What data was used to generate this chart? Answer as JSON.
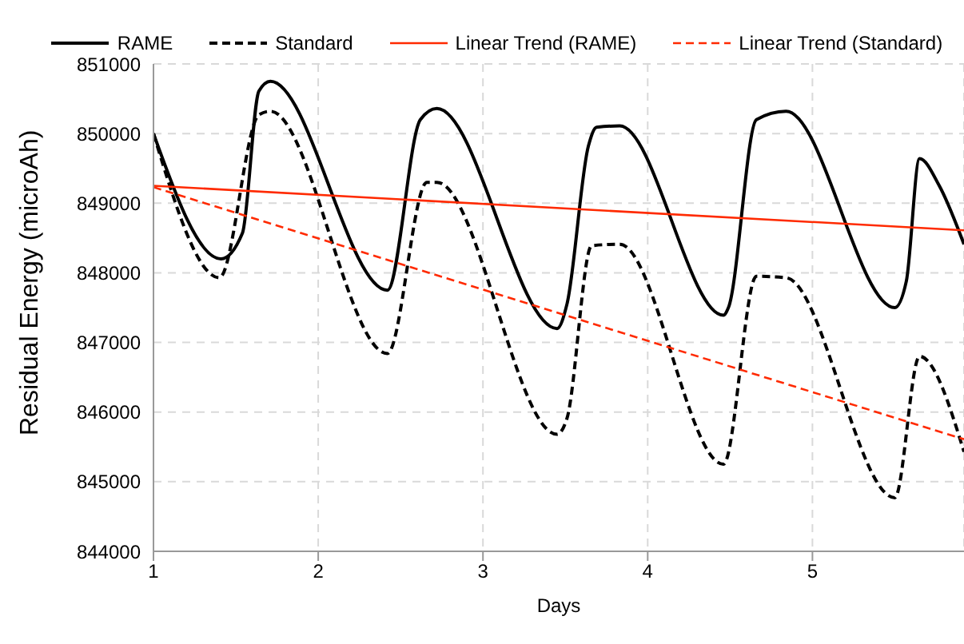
{
  "chart_data": {
    "type": "line",
    "xlabel": "Days",
    "ylabel": "Residual Energy (microAh)",
    "xlim": [
      1,
      5.92
    ],
    "xticks": [
      1,
      2,
      3,
      4,
      5
    ],
    "ylim": [
      844000,
      851000
    ],
    "yticks": [
      844000,
      845000,
      846000,
      847000,
      848000,
      849000,
      850000,
      851000
    ],
    "grid": true,
    "legend": "top",
    "marker": "none",
    "series": [
      {
        "name": "RAME",
        "color": "#000000",
        "line_style": "solid",
        "x": [
          1,
          1.41,
          1.54,
          1.64,
          1.71,
          2.42,
          2.62,
          2.72,
          3.45,
          3.51,
          3.64,
          3.69,
          3.83,
          4.46,
          4.49,
          4.66,
          4.84,
          5.5,
          5.57,
          5.65,
          5.77,
          5.92
        ],
        "values": [
          850000,
          848200,
          848570,
          850610,
          850750,
          847750,
          850200,
          850360,
          847200,
          847550,
          849820,
          850090,
          850110,
          847390,
          847500,
          850200,
          850320,
          847500,
          847880,
          849640,
          849250,
          848410
        ]
      },
      {
        "name": "Standard",
        "color": "#000000",
        "line_style": "dashed",
        "x": [
          1,
          1.4,
          1.64,
          1.71,
          2.42,
          2.66,
          2.72,
          3.45,
          3.51,
          3.66,
          3.83,
          4.46,
          4.66,
          4.84,
          5.5,
          5.65,
          5.92
        ],
        "values": [
          850000,
          847930,
          850270,
          850320,
          846840,
          849300,
          849300,
          845680,
          845910,
          848390,
          848410,
          845250,
          847950,
          847930,
          844770,
          846800,
          845430
        ]
      },
      {
        "name": "Linear Trend (RAME)",
        "color": "#ff2a00",
        "line_style": "solid",
        "x": [
          1,
          5.92
        ],
        "values": [
          849250,
          848610
        ]
      },
      {
        "name": "Linear Trend (Standard)",
        "color": "#ff2a00",
        "line_style": "dashed",
        "x": [
          1,
          5.92
        ],
        "values": [
          849230,
          845610
        ]
      }
    ]
  }
}
